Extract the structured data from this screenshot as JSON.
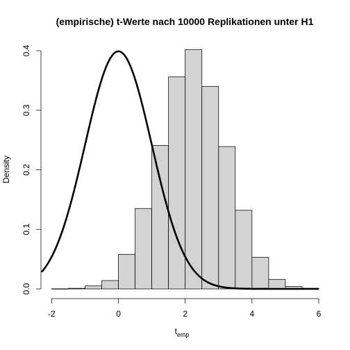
{
  "chart_data": {
    "type": "bar",
    "title": "(empirische) t-Werte nach 10000 Replikationen unter H1",
    "xlabel": "t",
    "xlabel_subscript": "emp",
    "ylabel": "Density",
    "xlim": [
      -2,
      6
    ],
    "ylim": [
      0,
      0.4
    ],
    "x_ticks": [
      "-2",
      "0",
      "2",
      "4",
      "6"
    ],
    "y_ticks": [
      "0.0",
      "0.1",
      "0.2",
      "0.3",
      "0.4"
    ],
    "histogram": {
      "bin_width": 0.5,
      "bins": [
        {
          "from": -2.0,
          "to": -1.5,
          "density": 0.0002
        },
        {
          "from": -1.5,
          "to": -1.0,
          "density": 0.001
        },
        {
          "from": -1.0,
          "to": -0.5,
          "density": 0.005
        },
        {
          "from": -0.5,
          "to": 0.0,
          "density": 0.014
        },
        {
          "from": 0.0,
          "to": 0.5,
          "density": 0.058
        },
        {
          "from": 0.5,
          "to": 1.0,
          "density": 0.135
        },
        {
          "from": 1.0,
          "to": 1.5,
          "density": 0.241
        },
        {
          "from": 1.5,
          "to": 2.0,
          "density": 0.356
        },
        {
          "from": 2.0,
          "to": 2.5,
          "density": 0.402
        },
        {
          "from": 2.5,
          "to": 3.0,
          "density": 0.34
        },
        {
          "from": 3.0,
          "to": 3.5,
          "density": 0.239
        },
        {
          "from": 3.5,
          "to": 4.0,
          "density": 0.132
        },
        {
          "from": 4.0,
          "to": 4.5,
          "density": 0.053
        },
        {
          "from": 4.5,
          "to": 5.0,
          "density": 0.016
        },
        {
          "from": 5.0,
          "to": 5.5,
          "density": 0.004
        },
        {
          "from": 5.5,
          "to": 6.0,
          "density": 0.001
        }
      ],
      "fill": "#d3d3d3"
    },
    "overlay_curve": {
      "type": "line",
      "distribution": "standard normal density",
      "x_range": [
        -2.3,
        6
      ],
      "color": "#000000"
    },
    "grid": false
  }
}
